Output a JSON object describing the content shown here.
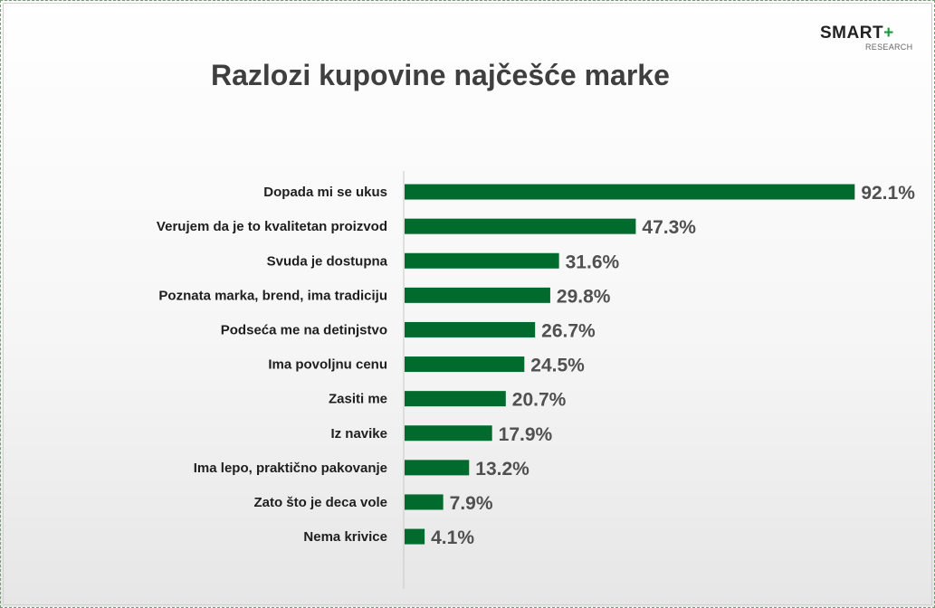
{
  "logo": {
    "text": "SMART",
    "plus": "+",
    "sub": "RESEARCH"
  },
  "colors": {
    "bar": "#006b2d",
    "axis": "#c8c8c8"
  },
  "chart_data": {
    "type": "bar",
    "orientation": "horizontal",
    "title": "Razlozi kupovine najčešće marke",
    "categories": [
      "Dopada mi se ukus",
      "Verujem da je to kvalitetan proizvod",
      "Svuda je dostupna",
      "Poznata marka, brend, ima tradiciju",
      "Podseća me na detinjstvo",
      "Ima povoljnu cenu",
      "Zasiti me",
      "Iz navike",
      "Ima lepo, praktično pakovanje",
      "Zato što je deca vole",
      "Nema krivice"
    ],
    "values": [
      92.1,
      47.3,
      31.6,
      29.8,
      26.7,
      24.5,
      20.7,
      17.9,
      13.2,
      7.9,
      4.1
    ],
    "data_labels": [
      "92.1%",
      "47.3%",
      "31.6%",
      "29.8%",
      "26.7%",
      "24.5%",
      "20.7%",
      "17.9%",
      "13.2%",
      "7.9%",
      "4.1%"
    ],
    "unit": "%",
    "xlim": [
      0,
      100
    ],
    "grid": false,
    "legend": "none"
  }
}
